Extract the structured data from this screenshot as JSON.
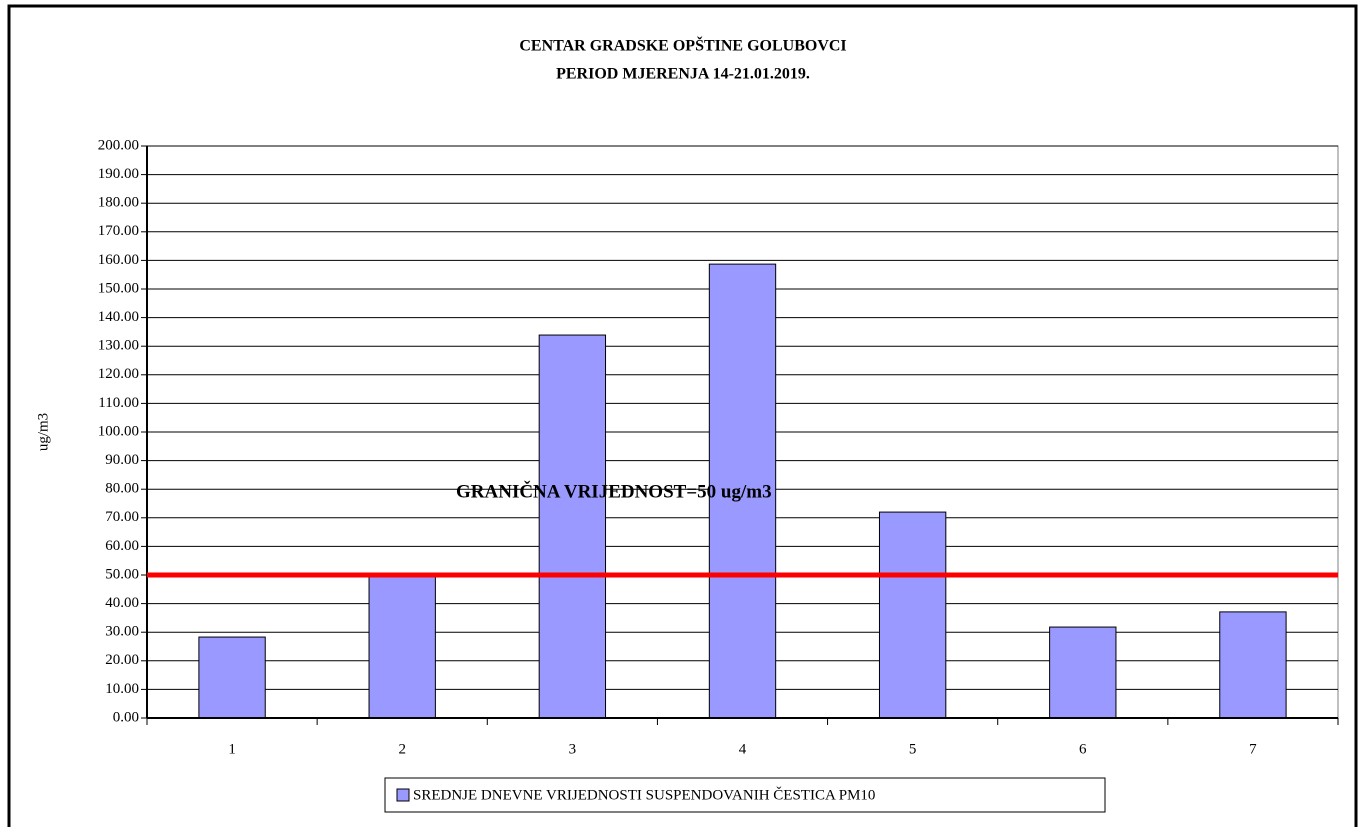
{
  "chart_data": {
    "type": "bar",
    "title": [
      "CENTAR GRADSKE OPŠTINE GOLUBOVCI",
      "PERIOD MJERENJA 14-21.01.2019."
    ],
    "y_label": "ug/m3",
    "categories": [
      "1",
      "2",
      "3",
      "4",
      "5",
      "6",
      "7"
    ],
    "series": [
      {
        "name": "SREDNJE DNEVNE VRIJEDNOSTI SUSPENDOVANIH ČESTICA PM10",
        "color": "#9999ff",
        "values": [
          28.3,
          49.3,
          133.9,
          158.7,
          72.0,
          31.8,
          37.1
        ]
      }
    ],
    "threshold": {
      "value": 50,
      "label": "GRANIČNA VRIJEDNOST=50 ug/m3",
      "color": "#ff0000"
    },
    "ylim": [
      0,
      200
    ],
    "yticks": [
      {
        "value": 0,
        "label": "0.00"
      },
      {
        "value": 10,
        "label": "10.00"
      },
      {
        "value": 20,
        "label": "20.00"
      },
      {
        "value": 30,
        "label": "30.00"
      },
      {
        "value": 40,
        "label": "40.00"
      },
      {
        "value": 50,
        "label": "50.00"
      },
      {
        "value": 60,
        "label": "60.00"
      },
      {
        "value": 70,
        "label": "70.00"
      },
      {
        "value": 80,
        "label": "80.00"
      },
      {
        "value": 90,
        "label": "90.00"
      },
      {
        "value": 100,
        "label": "100.00"
      },
      {
        "value": 110,
        "label": "110.00"
      },
      {
        "value": 120,
        "label": "120.00"
      },
      {
        "value": 130,
        "label": "130.00"
      },
      {
        "value": 140,
        "label": "140.00"
      },
      {
        "value": 150,
        "label": "150.00"
      },
      {
        "value": 160,
        "label": "160.00"
      },
      {
        "value": 170,
        "label": "170.00"
      },
      {
        "value": 180,
        "label": "180.00"
      },
      {
        "value": 190,
        "label": "190.00"
      },
      {
        "value": 200,
        "label": "200.00"
      }
    ],
    "grid": true
  }
}
